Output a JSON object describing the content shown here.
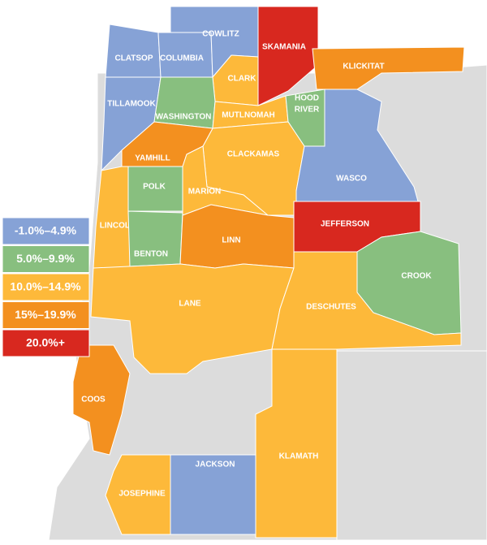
{
  "legend": {
    "items": [
      {
        "label": "-1.0%–4.9%",
        "color": "#86a2d6"
      },
      {
        "label": "5.0%–9.9%",
        "color": "#88bf7f"
      },
      {
        "label": "10.0%–14.9%",
        "color": "#fdb93a"
      },
      {
        "label": "15%–19.9%",
        "color": "#f3901f"
      },
      {
        "label": "20.0%+",
        "color": "#d8281f"
      }
    ]
  },
  "counties": [
    {
      "lines": [
        "CLATSOP"
      ],
      "color": "#86a2d6"
    },
    {
      "lines": [
        "COLUMBIA"
      ],
      "color": "#86a2d6"
    },
    {
      "lines": [
        "COWLITZ"
      ],
      "color": "#86a2d6"
    },
    {
      "lines": [
        "SKAMANIA"
      ],
      "color": "#d8281f"
    },
    {
      "lines": [
        "CLARK"
      ],
      "color": "#fdb93a"
    },
    {
      "lines": [
        "KLICKITAT"
      ],
      "color": "#f3901f"
    },
    {
      "lines": [
        "TILLAMOOK"
      ],
      "color": "#86a2d6"
    },
    {
      "lines": [
        "WASHINGTON"
      ],
      "color": "#88bf7f"
    },
    {
      "lines": [
        "MUTLNOMAH"
      ],
      "color": "#fdb93a"
    },
    {
      "lines": [
        "HOOD",
        "RIVER"
      ],
      "color": "#88bf7f"
    },
    {
      "lines": [
        "CLACKAMAS"
      ],
      "color": "#fdb93a"
    },
    {
      "lines": [
        "WASCO"
      ],
      "color": "#86a2d6"
    },
    {
      "lines": [
        "YAMHILL"
      ],
      "color": "#f3901f"
    },
    {
      "lines": [
        "POLK"
      ],
      "color": "#88bf7f"
    },
    {
      "lines": [
        "MARION"
      ],
      "color": "#fdb93a"
    },
    {
      "lines": [
        "LINCOLN"
      ],
      "color": "#fdb93a"
    },
    {
      "lines": [
        "BENTON"
      ],
      "color": "#88bf7f"
    },
    {
      "lines": [
        "LINN"
      ],
      "color": "#f3901f"
    },
    {
      "lines": [
        "JEFFERSON"
      ],
      "color": "#d8281f"
    },
    {
      "lines": [
        "CROOK"
      ],
      "color": "#88bf7f"
    },
    {
      "lines": [
        "LANE"
      ],
      "color": "#fdb93a"
    },
    {
      "lines": [
        "DESCHUTES"
      ],
      "color": "#fdb93a"
    },
    {
      "lines": [
        "COOS"
      ],
      "color": "#f3901f"
    },
    {
      "lines": [
        "KLAMATH"
      ],
      "color": "#fdb93a"
    },
    {
      "lines": [
        "JACKSON"
      ],
      "color": "#86a2d6"
    },
    {
      "lines": [
        "JOSEPHINE"
      ],
      "color": "#fdb93a"
    }
  ]
}
